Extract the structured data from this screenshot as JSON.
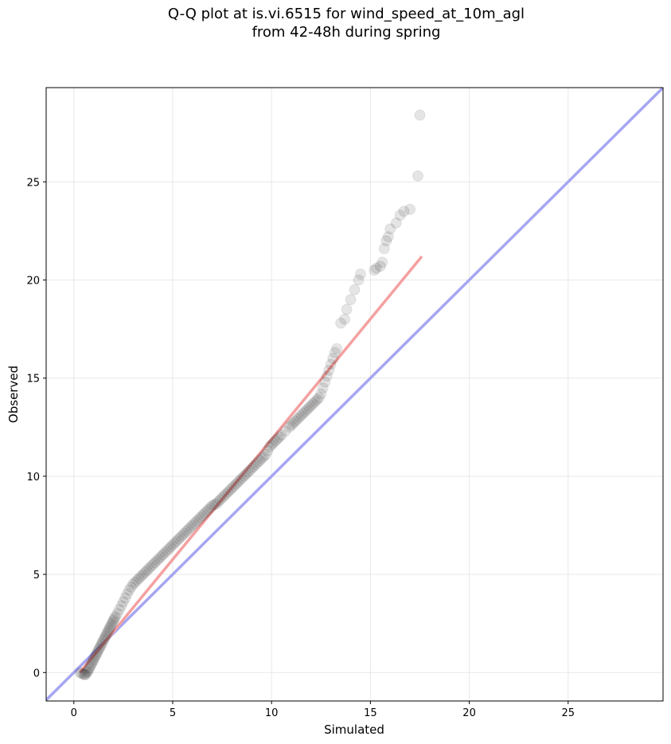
{
  "chart_data": {
    "type": "scatter",
    "title_line1": "Q-Q plot at is.vi.6515 for wind_speed_at_10m_agl",
    "title_line2": "from 42-48h during spring",
    "xlabel": "Simulated",
    "ylabel": "Observed",
    "xlim": [
      -1.4,
      29.8
    ],
    "ylim": [
      -1.45,
      29.8
    ],
    "xticks": [
      0,
      5,
      10,
      15,
      20,
      25
    ],
    "yticks": [
      0,
      5,
      10,
      15,
      20,
      25
    ],
    "grid": true,
    "colors": {
      "points": "#000000",
      "fit_line": "#f4a0a0",
      "identity_line": "#a6a6f2"
    },
    "fit_line": {
      "x": [
        0.3,
        17.6
      ],
      "y": [
        0.0,
        21.2
      ]
    },
    "identity_line": {
      "x": [
        -1.4,
        29.8
      ],
      "y": [
        -1.4,
        29.8
      ]
    },
    "series": [
      {
        "x": [
          0.3,
          0.4,
          0.5,
          0.55,
          0.6,
          0.65,
          0.7,
          0.75,
          0.8,
          0.85,
          0.9,
          0.95,
          1.0,
          1.05,
          1.1,
          1.15,
          1.2,
          1.25,
          1.3,
          1.35,
          1.4,
          1.45,
          1.5,
          1.55,
          1.6,
          1.65,
          1.7,
          1.75,
          1.8,
          1.85,
          1.9,
          1.95,
          2.0,
          2.05,
          2.1,
          2.2,
          2.3,
          2.4,
          2.5,
          2.6,
          2.7,
          2.8,
          2.9,
          3.0,
          3.1,
          3.2,
          3.3,
          3.4,
          3.5,
          3.6,
          3.7,
          3.8,
          3.9,
          4.0,
          4.1,
          4.2,
          4.3,
          4.4,
          4.5,
          4.6,
          4.7,
          4.8,
          4.9,
          5.0,
          5.1,
          5.2,
          5.3,
          5.4,
          5.5,
          5.6,
          5.7,
          5.8,
          5.9,
          6.0,
          6.1,
          6.2,
          6.3,
          6.4,
          6.5,
          6.6,
          6.7,
          6.8,
          6.9,
          7.0,
          7.1,
          7.2,
          7.3,
          7.4,
          7.5,
          7.6,
          7.7,
          7.8,
          7.9,
          8.0,
          8.1,
          8.2,
          8.3,
          8.4,
          8.5,
          8.6,
          8.7,
          8.8,
          8.9,
          9.0,
          9.1,
          9.2,
          9.3,
          9.4,
          9.5,
          9.6,
          9.7,
          9.8,
          9.9,
          10.0,
          10.1,
          10.2,
          10.3,
          10.4,
          10.5,
          10.7,
          10.9,
          11.0,
          11.1,
          11.2,
          11.3,
          11.4,
          11.5,
          11.6,
          11.7,
          11.8,
          11.9,
          12.0,
          12.1,
          12.2,
          12.3,
          12.4,
          12.5,
          12.6,
          12.7,
          12.8,
          12.9,
          13.0,
          13.1,
          13.2,
          13.3,
          13.5,
          13.7,
          13.8,
          14.0,
          14.2,
          14.4,
          14.5,
          15.2,
          15.3,
          15.5,
          15.6,
          15.7,
          15.8,
          15.9,
          16.0,
          16.3,
          16.5,
          16.7,
          17.0,
          17.4,
          17.5
        ],
        "y": [
          0.0,
          -0.05,
          -0.1,
          -0.1,
          -0.1,
          0.0,
          0.05,
          0.15,
          0.25,
          0.35,
          0.45,
          0.55,
          0.65,
          0.75,
          0.85,
          0.95,
          1.05,
          1.15,
          1.25,
          1.35,
          1.45,
          1.55,
          1.65,
          1.75,
          1.85,
          1.95,
          2.05,
          2.15,
          2.25,
          2.35,
          2.45,
          2.55,
          2.65,
          2.75,
          2.85,
          3.0,
          3.2,
          3.4,
          3.6,
          3.8,
          4.0,
          4.2,
          4.35,
          4.5,
          4.6,
          4.7,
          4.8,
          4.9,
          5.0,
          5.1,
          5.2,
          5.3,
          5.4,
          5.5,
          5.6,
          5.7,
          5.8,
          5.9,
          6.0,
          6.1,
          6.2,
          6.3,
          6.4,
          6.5,
          6.6,
          6.7,
          6.8,
          6.9,
          7.0,
          7.1,
          7.2,
          7.3,
          7.4,
          7.5,
          7.6,
          7.7,
          7.8,
          7.9,
          8.0,
          8.1,
          8.2,
          8.3,
          8.4,
          8.5,
          8.55,
          8.6,
          8.7,
          8.8,
          8.9,
          9.0,
          9.1,
          9.2,
          9.3,
          9.4,
          9.5,
          9.6,
          9.7,
          9.8,
          9.9,
          10.0,
          10.1,
          10.2,
          10.3,
          10.4,
          10.5,
          10.6,
          10.7,
          10.8,
          10.9,
          11.0,
          11.1,
          11.3,
          11.5,
          11.6,
          11.7,
          11.8,
          11.9,
          12.0,
          12.1,
          12.3,
          12.5,
          12.6,
          12.7,
          12.8,
          12.9,
          13.0,
          13.1,
          13.2,
          13.3,
          13.4,
          13.5,
          13.6,
          13.7,
          13.8,
          13.9,
          14.0,
          14.2,
          14.5,
          14.8,
          15.1,
          15.4,
          15.7,
          16.0,
          16.3,
          16.5,
          17.8,
          18.0,
          18.5,
          19.0,
          19.5,
          20.0,
          20.3,
          20.5,
          20.6,
          20.7,
          20.9,
          21.6,
          22.0,
          22.2,
          22.6,
          22.9,
          23.3,
          23.5,
          23.6,
          25.3,
          28.4
        ]
      }
    ]
  }
}
